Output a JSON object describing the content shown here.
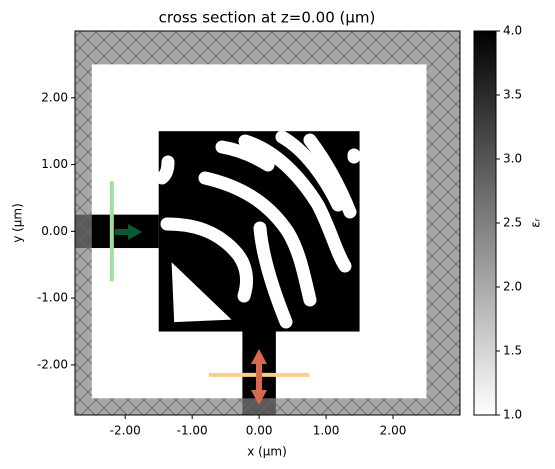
{
  "chart_data": {
    "type": "permittivity_map",
    "title": "cross section at z=0.00 (μm)",
    "x_label": "x (μm)",
    "y_label": "y (μm)",
    "colorbar_label": "εᵣ",
    "xlim": [
      -2.75,
      3.0
    ],
    "ylim": [
      -2.75,
      3.0
    ],
    "xticks": [
      {
        "value": -2,
        "label": "-2.00"
      },
      {
        "value": -1,
        "label": "-1.00"
      },
      {
        "value": 0,
        "label": "0.00"
      },
      {
        "value": 1,
        "label": "1.00"
      },
      {
        "value": 2,
        "label": "2.00"
      }
    ],
    "yticks": [
      {
        "value": -2,
        "label": "-2.00"
      },
      {
        "value": -1,
        "label": "-1.00"
      },
      {
        "value": 0,
        "label": "0.00"
      },
      {
        "value": 1,
        "label": "1.00"
      },
      {
        "value": 2,
        "label": "2.00"
      }
    ],
    "clim": [
      1,
      4
    ],
    "cticks": [
      {
        "value": 1,
        "label": "1.0"
      },
      1.5,
      {
        "value": 2,
        "label": "2.0"
      },
      2.5,
      {
        "value": 3,
        "label": "3.0"
      },
      3.5,
      {
        "value": 4,
        "label": "4.0"
      }
    ],
    "structures": [
      {
        "x": [
          -2.75,
          -1.5
        ],
        "y": [
          -0.25,
          0.25
        ],
        "eps": 4
      },
      {
        "x": [
          -0.25,
          0.25
        ],
        "y": [
          -2.75,
          -1.5
        ],
        "eps": 4
      },
      {
        "x": [
          -1.5,
          1.5
        ],
        "y": [
          -1.5,
          1.5
        ],
        "eps": 4
      }
    ],
    "pml": [
      {
        "x": [
          -2.75,
          -2.5
        ],
        "y": [
          -2.75,
          3.0
        ]
      },
      {
        "x": [
          2.5,
          3.0
        ],
        "y": [
          -2.75,
          3.0
        ]
      },
      {
        "x": [
          -2.5,
          2.5
        ],
        "y": [
          2.5,
          3.0
        ]
      },
      {
        "x": [
          -2.5,
          2.5
        ],
        "y": [
          -2.75,
          -2.5
        ]
      }
    ],
    "source": {
      "x": -2.2,
      "y": [
        -0.75,
        0.75
      ],
      "color": "#a3dea0"
    },
    "monitor": {
      "y": -2.15,
      "x": [
        -0.75,
        0.75
      ],
      "color": "#f7d08a"
    }
  }
}
